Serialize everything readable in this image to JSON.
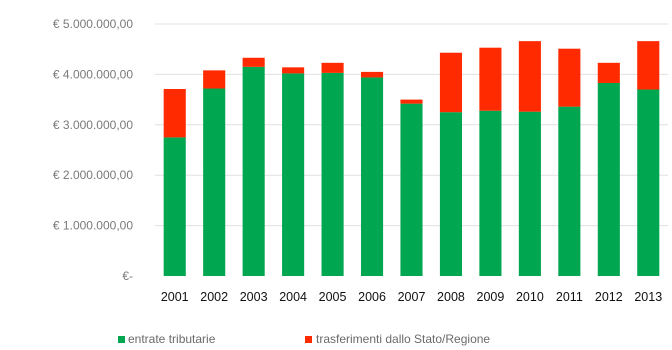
{
  "chart_data": {
    "type": "bar",
    "stacked": true,
    "categories": [
      "2001",
      "2002",
      "2003",
      "2004",
      "2005",
      "2006",
      "2007",
      "2008",
      "2009",
      "2010",
      "2011",
      "2012",
      "2013"
    ],
    "series": [
      {
        "name": "entrate tributarie",
        "color": "#00a650",
        "values": [
          2750000,
          3720000,
          4150000,
          4020000,
          4030000,
          3940000,
          3420000,
          3250000,
          3280000,
          3260000,
          3360000,
          3830000,
          3700000
        ]
      },
      {
        "name": "trasferimenti dallo Stato/Regione",
        "color": "#ff2a00",
        "values": [
          960000,
          360000,
          180000,
          120000,
          200000,
          110000,
          80000,
          1180000,
          1250000,
          1400000,
          1150000,
          400000,
          960000
        ]
      }
    ],
    "y_ticks": [
      "€-",
      "€ 1.000.000,00",
      "€ 2.000.000,00",
      "€ 3.000.000,00",
      "€ 4.000.000,00",
      "€ 5.000.000,00"
    ],
    "ylim": [
      0,
      5000000
    ],
    "grid": true,
    "legend_position": "bottom"
  }
}
